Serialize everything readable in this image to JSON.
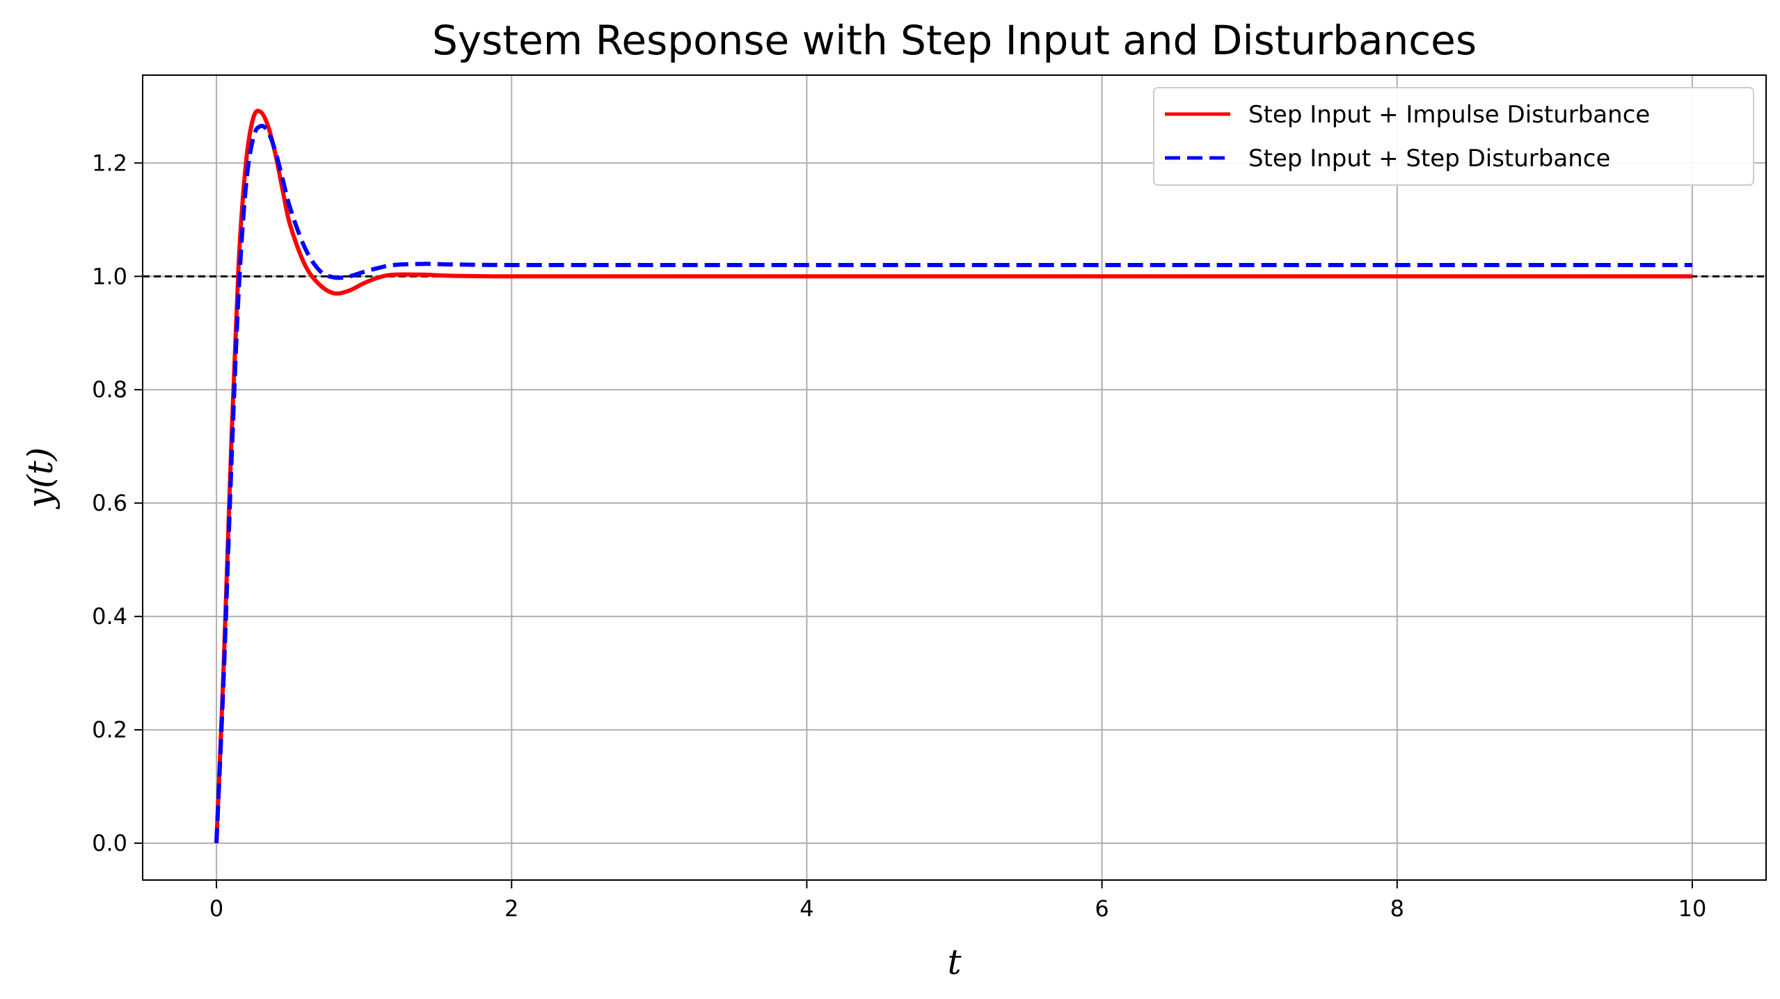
{
  "chart_data": {
    "type": "line",
    "title": "System Response with Step Input and Disturbances",
    "xlabel": "t",
    "ylabel": "y(t)",
    "xlim": [
      -0.5,
      10.5
    ],
    "ylim": [
      -0.065,
      1.355
    ],
    "xticks": [
      0,
      2,
      4,
      6,
      8,
      10
    ],
    "xtick_labels": [
      "0",
      "2",
      "4",
      "6",
      "8",
      "10"
    ],
    "yticks": [
      0.0,
      0.2,
      0.4,
      0.6,
      0.8,
      1.0,
      1.2
    ],
    "ytick_labels": [
      "0.0",
      "0.2",
      "0.4",
      "0.6",
      "0.8",
      "1.0",
      "1.2"
    ],
    "grid": true,
    "legend_position": "top-right",
    "reference_line": {
      "y": 1.0,
      "color": "#000000",
      "style": "dashed"
    },
    "series": [
      {
        "name": "Step Input + Impulse Disturbance",
        "color": "#ff0000",
        "style": "solid",
        "x": [
          0,
          0.05,
          0.1,
          0.15,
          0.2,
          0.25,
          0.3,
          0.35,
          0.4,
          0.45,
          0.5,
          0.6,
          0.7,
          0.8,
          0.9,
          1.0,
          1.1,
          1.2,
          1.4,
          1.6,
          2.0,
          3.0,
          5.0,
          10.0
        ],
        "y": [
          0.0,
          0.32,
          0.7,
          1.02,
          1.2,
          1.28,
          1.29,
          1.265,
          1.215,
          1.15,
          1.09,
          1.02,
          0.985,
          0.97,
          0.975,
          0.988,
          0.998,
          1.003,
          1.003,
          1.001,
          1.0,
          1.0,
          1.0,
          1.0
        ]
      },
      {
        "name": "Step Input + Step Disturbance",
        "color": "#0000ff",
        "style": "dashed",
        "x": [
          0,
          0.05,
          0.1,
          0.15,
          0.2,
          0.25,
          0.3,
          0.35,
          0.4,
          0.45,
          0.5,
          0.6,
          0.7,
          0.8,
          0.9,
          1.0,
          1.1,
          1.2,
          1.4,
          1.6,
          2.0,
          3.0,
          5.0,
          10.0
        ],
        "y": [
          0.0,
          0.3,
          0.66,
          0.97,
          1.16,
          1.245,
          1.265,
          1.255,
          1.22,
          1.17,
          1.12,
          1.05,
          1.01,
          0.998,
          1.0,
          1.008,
          1.015,
          1.02,
          1.022,
          1.021,
          1.02,
          1.02,
          1.02,
          1.02
        ]
      }
    ]
  }
}
